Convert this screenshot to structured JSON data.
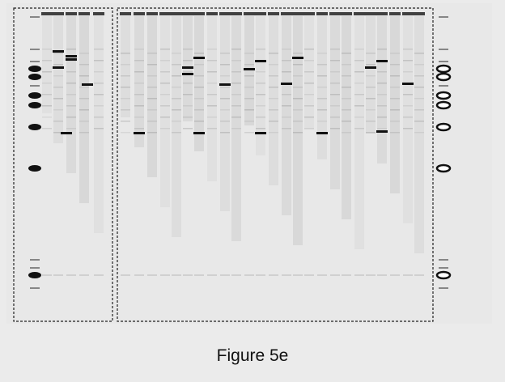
{
  "figure": {
    "caption": "Figure 5e"
  }
}
